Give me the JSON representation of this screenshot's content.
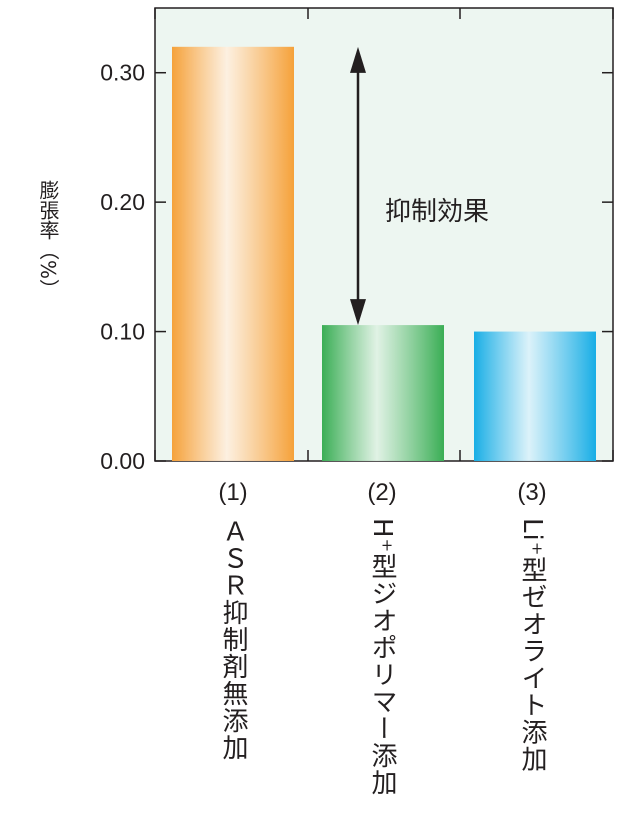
{
  "chart_data": {
    "type": "bar",
    "ylabel": "膨張率（%）",
    "ylim": [
      0,
      0.35
    ],
    "yticks": [
      "0.00",
      "0.10",
      "0.20",
      "0.30"
    ],
    "ytick_values": [
      0,
      0.1,
      0.2,
      0.3
    ],
    "grid": false,
    "background": "#edf6f1",
    "categories": [
      {
        "num": "(1)",
        "label": "ＡＳＲ抑制剤無添加",
        "value": 0.32,
        "color": "#f5a23a"
      },
      {
        "num": "(2)",
        "label": "H⁺型ジオポリマー添加",
        "value": 0.105,
        "color": "#3aae55"
      },
      {
        "num": "(3)",
        "label": "Li⁺型ゼオライト添加",
        "value": 0.1,
        "color": "#18aee6"
      }
    ],
    "annotation": {
      "text": "抑制効果",
      "from_value": 0.32,
      "to_value": 0.105
    }
  }
}
